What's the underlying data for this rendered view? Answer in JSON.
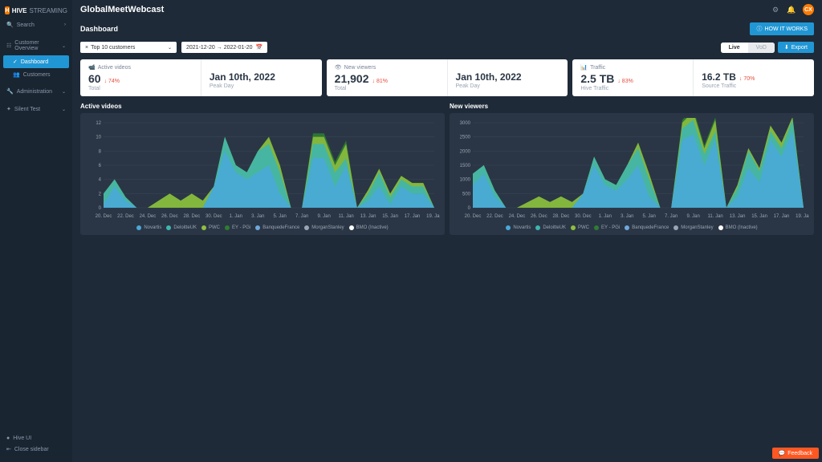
{
  "brand": {
    "name": "HIVE",
    "suffix": "STREAMING"
  },
  "app_title": "GlobalMeetWebcast",
  "sidebar": {
    "search_label": "Search",
    "sections": [
      {
        "label": "Customer Overview",
        "items": [
          {
            "label": "Dashboard",
            "active": true
          },
          {
            "label": "Customers",
            "active": false
          }
        ]
      },
      {
        "label": "Administration",
        "items": []
      },
      {
        "label": "Silent Test",
        "items": []
      }
    ],
    "footer": [
      "Hive UI",
      "Close sidebar"
    ]
  },
  "topbar": {
    "gear": "gear",
    "bell": "bell",
    "avatar": "CX"
  },
  "subheader": {
    "title": "Dashboard",
    "how_it_works": "HOW IT WORKS"
  },
  "controls": {
    "dropdown_prefix": "×",
    "dropdown_label": "Top 10 customers",
    "date_range": "2021-12-20 → 2022-01-20",
    "toggle_live": "Live",
    "toggle_vod": "VoD",
    "export": "Export"
  },
  "metrics": [
    {
      "icon": "video",
      "label": "Active videos",
      "left_value": "60",
      "left_delta": "↓ 74%",
      "left_sub": "Total",
      "right_value": "Jan 10th, 2022",
      "right_sub": "Peak Day"
    },
    {
      "icon": "eye",
      "label": "New viewers",
      "left_value": "21,902",
      "left_delta": "↓ 81%",
      "left_sub": "Total",
      "right_value": "Jan 10th, 2022",
      "right_sub": "Peak Day"
    },
    {
      "icon": "traffic",
      "label": "Traffic",
      "left_value": "2.5 TB",
      "left_delta": "↓ 83%",
      "left_sub": "Hive Traffic",
      "right_value": "16.2 TB",
      "right_delta": "↓ 70%",
      "right_sub": "Source Traffic"
    }
  ],
  "charts": {
    "common": {
      "x_labels": [
        "20. Dec",
        "22. Dec",
        "24. Dec",
        "26. Dec",
        "28. Dec",
        "30. Dec",
        "1. Jan",
        "3. Jan",
        "5. Jan",
        "7. Jan",
        "9. Jan",
        "11. Jan",
        "13. Jan",
        "15. Jan",
        "17. Jan",
        "19. Jan"
      ],
      "series_colors": [
        "#4aa8d8",
        "#3eb6b0",
        "#8fbf3f",
        "#2e7d32",
        "#6fa8dc",
        "#9aa4b2",
        "#ffffff"
      ],
      "series_names": [
        "Novartis",
        "DeloitteUK",
        "PWC",
        "EY - PGi",
        "BanquedeFrance",
        "MorganStanley",
        "BMO (Inactive)"
      ],
      "background": "#2a3645",
      "grid_color": "#3a4658",
      "axis_color": "#9aa4b2",
      "label_fontsize": 6
    },
    "active_videos": {
      "title": "Active videos",
      "type": "area-stacked",
      "ylim": [
        0,
        12
      ],
      "ytick_step": 2,
      "data": [
        [
          0.5,
          3,
          1,
          0,
          0,
          0,
          0,
          0,
          0,
          0,
          3,
          8,
          5,
          4,
          5,
          6,
          2,
          0,
          0,
          7,
          7,
          3,
          6,
          0,
          1,
          3,
          0.5,
          3,
          2,
          2,
          0
        ],
        [
          1.5,
          1,
          0.5,
          0,
          0,
          0,
          0,
          0,
          0,
          0,
          0,
          2,
          1,
          1,
          3,
          3,
          3,
          0,
          0,
          2,
          2,
          2,
          1,
          0,
          1,
          2,
          1,
          1,
          1,
          1,
          0
        ],
        [
          0,
          0,
          0,
          0,
          0,
          1,
          2,
          1,
          2,
          1,
          0,
          0,
          0,
          0,
          0,
          1,
          1,
          0,
          0,
          1,
          1,
          1,
          2,
          0,
          0.5,
          0.5,
          0.5,
          0.5,
          0.5,
          0.5,
          0
        ],
        [
          0,
          0,
          0,
          0,
          0,
          0,
          0,
          0,
          0,
          0,
          0,
          0,
          0,
          0,
          0,
          0,
          0,
          0,
          0,
          0.5,
          0.5,
          0.5,
          0.5,
          0,
          0,
          0,
          0,
          0,
          0,
          0,
          0
        ]
      ]
    },
    "new_viewers": {
      "title": "New viewers",
      "type": "area-stacked",
      "ylim": [
        0,
        3000
      ],
      "ytick_step": 500,
      "data": [
        [
          800,
          1200,
          400,
          0,
          0,
          0,
          0,
          0,
          0,
          0,
          500,
          1500,
          800,
          600,
          1000,
          1500,
          400,
          0,
          0,
          2400,
          2600,
          1500,
          2400,
          0,
          400,
          1400,
          900,
          2400,
          1800,
          2700,
          0
        ],
        [
          400,
          300,
          200,
          0,
          0,
          0,
          0,
          0,
          0,
          0,
          0,
          300,
          200,
          200,
          500,
          600,
          600,
          0,
          0,
          400,
          500,
          400,
          300,
          0,
          300,
          600,
          400,
          300,
          300,
          400,
          0
        ],
        [
          0,
          0,
          0,
          0,
          0,
          200,
          400,
          200,
          400,
          200,
          0,
          0,
          0,
          0,
          0,
          200,
          200,
          0,
          0,
          200,
          300,
          200,
          400,
          0,
          100,
          100,
          100,
          200,
          200,
          100,
          0
        ],
        [
          0,
          0,
          0,
          0,
          0,
          0,
          0,
          0,
          0,
          0,
          0,
          0,
          0,
          0,
          0,
          0,
          0,
          0,
          0,
          100,
          100,
          100,
          100,
          0,
          0,
          0,
          0,
          0,
          0,
          0,
          0
        ]
      ]
    }
  },
  "feedback": "Feedback"
}
